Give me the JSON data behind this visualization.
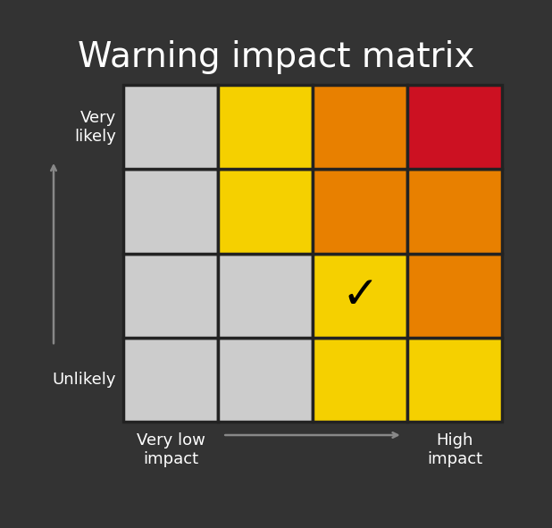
{
  "title": "Warning impact matrix",
  "background_color": "#333333",
  "title_color": "#ffffff",
  "title_fontsize": 28,
  "grid_colors": [
    [
      "#cccccc",
      "#cccccc",
      "#f5d000",
      "#f5d000"
    ],
    [
      "#cccccc",
      "#cccccc",
      "#f5d000",
      "#e88000"
    ],
    [
      "#cccccc",
      "#f5d000",
      "#e88000",
      "#e88000"
    ],
    [
      "#cccccc",
      "#f5d000",
      "#e88000",
      "#cc1122"
    ]
  ],
  "checkmark_row": 1,
  "checkmark_col": 2,
  "cell_edge_color": "#222222",
  "cell_linewidth": 2.5,
  "ylabel_top": "Very\nlikely",
  "ylabel_bottom": "Unlikely",
  "xlabel_left": "Very low\nimpact",
  "xlabel_right": "High\nimpact",
  "arrow_color": "#888888",
  "label_color": "#ffffff",
  "label_fontsize": 13,
  "checkmark_fontsize": 36
}
